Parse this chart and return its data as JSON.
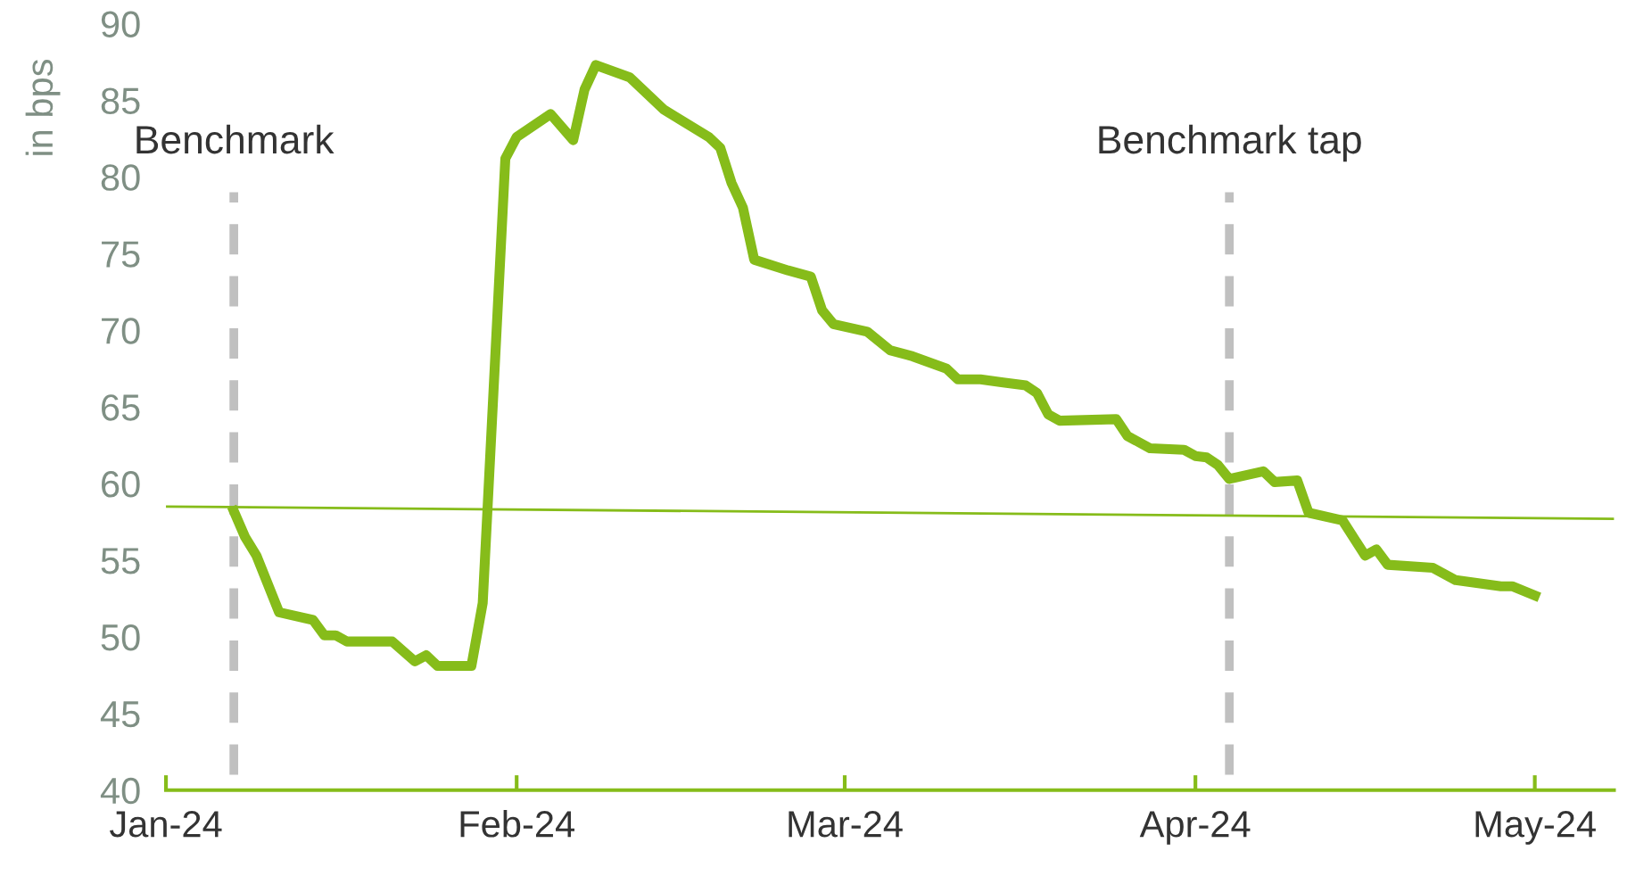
{
  "chart_data": {
    "type": "line",
    "ylabel": "in bps",
    "xlim": [
      "2024-01-01",
      "2024-05-08"
    ],
    "xticks": [
      {
        "value": "2024-01-01",
        "label": "Jan-24"
      },
      {
        "value": "2024-02-01",
        "label": "Feb-24"
      },
      {
        "value": "2024-03-01",
        "label": "Mar-24"
      },
      {
        "value": "2024-04-01",
        "label": "Apr-24"
      },
      {
        "value": "2024-05-01",
        "label": "May-24"
      }
    ],
    "ylim": [
      40,
      90
    ],
    "yticks": [
      40,
      45,
      50,
      55,
      60,
      65,
      70,
      75,
      80,
      85,
      90
    ],
    "grid": false,
    "legend": false,
    "marker": "none",
    "line_style": "solid",
    "series": [
      {
        "color": "#86bc1a",
        "x": [
          "2024-01-07",
          "2024-01-08",
          "2024-01-09",
          "2024-01-11",
          "2024-01-14",
          "2024-01-15",
          "2024-01-16",
          "2024-01-17",
          "2024-01-21",
          "2024-01-23",
          "2024-01-24",
          "2024-01-25",
          "2024-01-28",
          "2024-01-29",
          "2024-01-31",
          "2024-02-01",
          "2024-02-04",
          "2024-02-06",
          "2024-02-07",
          "2024-02-08",
          "2024-02-11",
          "2024-02-12",
          "2024-02-14",
          "2024-02-18",
          "2024-02-19",
          "2024-02-20",
          "2024-02-21",
          "2024-02-22",
          "2024-02-25",
          "2024-02-27",
          "2024-02-28",
          "2024-02-29",
          "2024-03-03",
          "2024-03-05",
          "2024-03-07",
          "2024-03-10",
          "2024-03-11",
          "2024-03-13",
          "2024-03-15",
          "2024-03-17",
          "2024-03-18",
          "2024-03-19",
          "2024-03-20",
          "2024-03-25",
          "2024-03-26",
          "2024-03-28",
          "2024-03-31",
          "2024-04-01",
          "2024-04-02",
          "2024-04-03",
          "2024-04-04",
          "2024-04-07",
          "2024-04-08",
          "2024-04-10",
          "2024-04-11",
          "2024-04-14",
          "2024-04-16",
          "2024-04-17",
          "2024-04-18",
          "2024-04-22",
          "2024-04-24",
          "2024-04-28",
          "2024-04-29",
          "2024-05-01"
        ],
        "values": [
          58.2,
          56.5,
          55.3,
          51.6,
          51.1,
          50.1,
          50.1,
          49.7,
          49.7,
          48.4,
          48.8,
          48.1,
          48.1,
          52.2,
          81.2,
          82.6,
          84.1,
          82.4,
          85.7,
          87.3,
          86.5,
          85.8,
          84.4,
          82.6,
          81.9,
          79.6,
          78.0,
          74.6,
          73.9,
          73.5,
          71.3,
          70.4,
          69.9,
          68.7,
          68.3,
          67.5,
          66.8,
          66.8,
          66.6,
          66.4,
          65.9,
          64.5,
          64.1,
          64.2,
          63.1,
          62.3,
          62.2,
          61.8,
          61.7,
          61.2,
          60.3,
          60.8,
          60.1,
          60.2,
          58.1,
          57.6,
          55.3,
          55.7,
          54.7,
          54.5,
          53.7,
          53.3,
          53.3,
          52.7
        ]
      },
      {
        "type": "line",
        "color": "#86bc1a",
        "x": [
          "2024-01-01",
          "2024-05-08"
        ],
        "values": [
          58.5,
          57.7
        ]
      }
    ],
    "ref_lines": [
      {
        "axis": "x",
        "value": "2024-01-07",
        "label": "Benchmark",
        "color": "#c0c0c0",
        "line_style": "dashed"
      },
      {
        "axis": "x",
        "value": "2024-04-04",
        "label": "Benchmark tap",
        "color": "#c0c0c0",
        "line_style": "dashed"
      }
    ]
  }
}
